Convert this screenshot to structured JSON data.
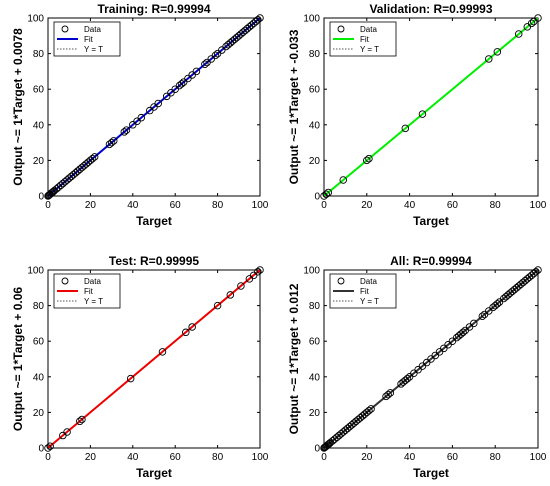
{
  "chart_data": [
    {
      "type": "scatter",
      "title": "Training: R=0.99994",
      "xlabel": "Target",
      "ylabel": "Output ~= 1*Target + 0.0078",
      "xlim": [
        0,
        100
      ],
      "ylim": [
        0,
        100
      ],
      "xticks": [
        "0",
        "20",
        "40",
        "60",
        "80",
        "100"
      ],
      "yticks": [
        "0",
        "20",
        "40",
        "60",
        "80",
        "100"
      ],
      "grid": false,
      "legend_position": "top-left",
      "fit_color": "#0000cc",
      "fit": {
        "slope": 1,
        "intercept": 0.0078
      },
      "series": [
        {
          "name": "Data",
          "x": [
            0,
            0.3,
            0.6,
            1,
            1.5,
            2,
            2.5,
            3,
            4,
            5,
            6,
            7,
            8,
            9,
            10,
            11,
            12,
            13,
            14,
            15,
            16,
            17,
            18,
            19,
            20,
            21,
            22,
            29,
            30,
            31,
            36,
            37,
            40,
            42,
            44,
            48,
            50,
            52,
            56,
            58,
            60,
            62,
            63,
            64,
            66,
            68,
            70,
            74,
            75,
            77,
            79,
            80,
            82,
            84,
            85,
            86,
            87,
            88,
            89,
            90,
            91,
            92,
            93,
            94,
            95,
            96,
            97,
            98,
            99,
            100
          ],
          "y": [
            0,
            0.3,
            0.6,
            1,
            1.5,
            2,
            2.5,
            3,
            4,
            5,
            6,
            7,
            8,
            9,
            10,
            11,
            12,
            13,
            14,
            15,
            16,
            17,
            18,
            19,
            20,
            21,
            22,
            29,
            30,
            31,
            36,
            37,
            40,
            42,
            44,
            48,
            50,
            52,
            56,
            58,
            60,
            62,
            63,
            64,
            66,
            68,
            70,
            74,
            75,
            77,
            79,
            80,
            82,
            84,
            85,
            86,
            87,
            88,
            89,
            90,
            91,
            92,
            93,
            94,
            95,
            96,
            97,
            98,
            99,
            100
          ]
        },
        {
          "name": "Fit"
        },
        {
          "name": "Y = T"
        }
      ]
    },
    {
      "type": "scatter",
      "title": "Validation: R=0.99993",
      "xlabel": "Target",
      "ylabel": "Output ~= 1*Target + -0.033",
      "xlim": [
        0,
        100
      ],
      "ylim": [
        0,
        100
      ],
      "xticks": [
        "0",
        "20",
        "40",
        "60",
        "80",
        "100"
      ],
      "yticks": [
        "0",
        "20",
        "40",
        "60",
        "80",
        "100"
      ],
      "grid": false,
      "legend_position": "top-left",
      "fit_color": "#00ee00",
      "fit": {
        "slope": 1,
        "intercept": -0.033
      },
      "series": [
        {
          "name": "Data",
          "x": [
            0,
            1,
            2,
            9,
            20,
            21,
            38,
            46,
            77,
            81,
            91,
            95,
            97,
            98,
            100
          ],
          "y": [
            0,
            1,
            2,
            9,
            20,
            21,
            38,
            46,
            77,
            81,
            91,
            95,
            97,
            98,
            100
          ]
        },
        {
          "name": "Fit"
        },
        {
          "name": "Y = T"
        }
      ]
    },
    {
      "type": "scatter",
      "title": "Test: R=0.99995",
      "xlabel": "Target",
      "ylabel": "Output ~= 1*Target + 0.06",
      "xlim": [
        0,
        100
      ],
      "ylim": [
        0,
        100
      ],
      "xticks": [
        "0",
        "20",
        "40",
        "60",
        "80",
        "100"
      ],
      "yticks": [
        "0",
        "20",
        "40",
        "60",
        "80",
        "100"
      ],
      "grid": false,
      "legend_position": "top-left",
      "fit_color": "#ee0000",
      "fit": {
        "slope": 1,
        "intercept": 0.06
      },
      "series": [
        {
          "name": "Data",
          "x": [
            0,
            1,
            7,
            9,
            15,
            16,
            39,
            54,
            65,
            68,
            80,
            86,
            91,
            95,
            97,
            99,
            100
          ],
          "y": [
            0,
            1,
            7,
            9,
            15,
            16,
            39,
            54,
            65,
            68,
            80,
            86,
            91,
            95,
            97,
            99,
            100
          ]
        },
        {
          "name": "Fit"
        },
        {
          "name": "Y = T"
        }
      ]
    },
    {
      "type": "scatter",
      "title": "All: R=0.99994",
      "xlabel": "Target",
      "ylabel": "Output ~= 1*Target + 0.012",
      "xlim": [
        0,
        100
      ],
      "ylim": [
        0,
        100
      ],
      "xticks": [
        "0",
        "20",
        "40",
        "60",
        "80",
        "100"
      ],
      "yticks": [
        "0",
        "20",
        "40",
        "60",
        "80",
        "100"
      ],
      "grid": false,
      "legend_position": "top-left",
      "fit_color": "#333333",
      "fit": {
        "slope": 1,
        "intercept": 0.012
      },
      "series": [
        {
          "name": "Data",
          "x": [
            0,
            0.3,
            0.6,
            1,
            1.5,
            2,
            2.5,
            3,
            4,
            5,
            6,
            7,
            8,
            9,
            10,
            11,
            12,
            13,
            14,
            15,
            16,
            17,
            18,
            19,
            20,
            21,
            22,
            29,
            30,
            31,
            36,
            37,
            38,
            39,
            40,
            42,
            44,
            46,
            48,
            50,
            52,
            54,
            56,
            58,
            60,
            62,
            63,
            64,
            65,
            66,
            68,
            70,
            74,
            75,
            77,
            79,
            80,
            81,
            82,
            84,
            85,
            86,
            87,
            88,
            89,
            90,
            91,
            92,
            93,
            94,
            95,
            96,
            97,
            98,
            99,
            100
          ],
          "y": [
            0,
            0.3,
            0.6,
            1,
            1.5,
            2,
            2.5,
            3,
            4,
            5,
            6,
            7,
            8,
            9,
            10,
            11,
            12,
            13,
            14,
            15,
            16,
            17,
            18,
            19,
            20,
            21,
            22,
            29,
            30,
            31,
            36,
            37,
            38,
            39,
            40,
            42,
            44,
            46,
            48,
            50,
            52,
            54,
            56,
            58,
            60,
            62,
            63,
            64,
            65,
            66,
            68,
            70,
            74,
            75,
            77,
            79,
            80,
            81,
            82,
            84,
            85,
            86,
            87,
            88,
            89,
            90,
            91,
            92,
            93,
            94,
            95,
            96,
            97,
            98,
            99,
            100
          ]
        },
        {
          "name": "Fit"
        },
        {
          "name": "Y = T"
        }
      ]
    }
  ]
}
